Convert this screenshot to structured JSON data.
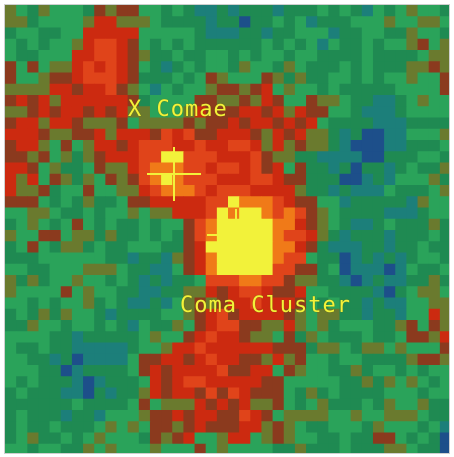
{
  "labels": {
    "x_comae": "X Comae",
    "coma_cluster": "Coma Cluster"
  },
  "colors": {
    "deep_blue": "#0a1a4f",
    "blue": "#1d4f8a",
    "teal": "#1c7f7a",
    "green": "#1f8a52",
    "green_light": "#2aa35a",
    "olive": "#6a7a2e",
    "brown": "#8b3a1e",
    "red": "#cc2a10",
    "red_bright": "#e0441a",
    "orange": "#f07a18",
    "yellow": "#f2f23a",
    "marker": "#f2f23a"
  },
  "markers": [
    {
      "name": "x-comae-marker"
    },
    {
      "name": "coma-cluster-marker"
    }
  ]
}
